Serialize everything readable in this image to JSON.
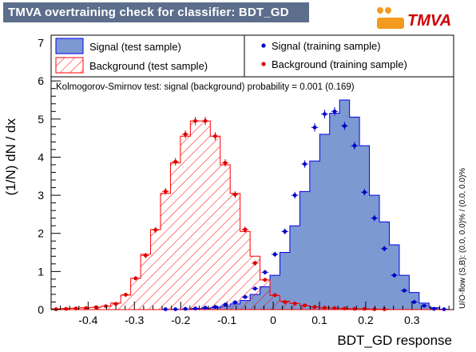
{
  "title": "TMVA overtraining check for classifier: BDT_GD",
  "logo_text": "TMVA",
  "colors": {
    "title_bg": "#5c6e8c",
    "signal_fill": "#7d99d1",
    "signal_line": "#0000ee",
    "signal_points": "#0000cc",
    "background_line": "#ff0000",
    "background_points": "#dd0000",
    "logo_orange": "#f39b1f",
    "logo_red": "#cc0000"
  },
  "legend": {
    "signal_test": "Signal (test sample)",
    "signal_train": "Signal (training sample)",
    "background_test": "Background (test sample)",
    "background_train": "Background (training sample)"
  },
  "ks_text": "Kolmogorov-Smirnov test: signal (background) probability = 0.001 (0.169)",
  "overflow_text": "U/O-flow (S,B): (0.0, 0.0)% / (0.0, 0.0)%",
  "chart_data": {
    "type": "histogram",
    "xlabel": "BDT_GD response",
    "ylabel": "(1/N) dN / dx",
    "xlim": [
      -0.48,
      0.39
    ],
    "ylim": [
      0,
      7.2
    ],
    "xticks": [
      -0.4,
      -0.3,
      -0.2,
      -0.1,
      0,
      0.1,
      0.2,
      0.3
    ],
    "xtick_labels": [
      "-0.4",
      "-0.3",
      "-0.2",
      "-0.1",
      "0",
      "0.1",
      "0.2",
      "0.3"
    ],
    "yticks": [
      0,
      1,
      2,
      3,
      4,
      5,
      6,
      7
    ],
    "ytick_labels": [
      "0",
      "1",
      "2",
      "3",
      "4",
      "5",
      "6",
      "7"
    ],
    "bin_edges": [
      -0.48,
      -0.4585,
      -0.437,
      -0.4155,
      -0.394,
      -0.3725,
      -0.351,
      -0.3295,
      -0.308,
      -0.2865,
      -0.265,
      -0.2435,
      -0.222,
      -0.2005,
      -0.179,
      -0.1575,
      -0.136,
      -0.1145,
      -0.093,
      -0.0715,
      -0.05,
      -0.0285,
      -0.007,
      0.0145,
      0.036,
      0.0575,
      0.079,
      0.1005,
      0.122,
      0.1435,
      0.165,
      0.1865,
      0.208,
      0.2295,
      0.251,
      0.2725,
      0.294,
      0.3155,
      0.337,
      0.3585,
      0.38
    ],
    "series": [
      {
        "name": "Signal (test sample)",
        "kind": "filled-histogram",
        "values": [
          0,
          0,
          0,
          0,
          0,
          0,
          0,
          0,
          0,
          0,
          0,
          0,
          0,
          0,
          0.02,
          0.03,
          0.05,
          0.09,
          0.15,
          0.24,
          0.4,
          0.6,
          0.9,
          1.5,
          2.2,
          3.1,
          3.9,
          4.6,
          5.15,
          5.5,
          5.05,
          4.3,
          3.0,
          2.3,
          1.7,
          0.9,
          0.45,
          0.17,
          0.05,
          0.01
        ]
      },
      {
        "name": "Signal (training sample)",
        "kind": "points",
        "values": [
          0,
          0,
          0,
          0,
          0,
          0,
          0,
          0,
          0,
          0,
          0,
          0.01,
          0.01,
          0.02,
          0.03,
          0.05,
          0.07,
          0.13,
          0.19,
          0.33,
          0.55,
          0.98,
          1.45,
          2.05,
          3.0,
          3.82,
          4.78,
          5.13,
          5.2,
          4.82,
          4.3,
          3.08,
          2.4,
          1.6,
          0.9,
          0.5,
          0.2,
          0.1,
          0.02,
          0.01
        ]
      },
      {
        "name": "Background (test sample)",
        "kind": "hatched-histogram",
        "values": [
          0.02,
          0.03,
          0.04,
          0.05,
          0.06,
          0.09,
          0.17,
          0.38,
          0.82,
          1.45,
          2.1,
          3.05,
          3.85,
          4.55,
          4.95,
          4.95,
          4.55,
          3.8,
          3.05,
          2.05,
          1.4,
          0.78,
          0.37,
          0.22,
          0.16,
          0.1,
          0.07,
          0.05,
          0.04,
          0.03,
          0.02,
          0.02,
          0.01,
          0.01,
          0,
          0,
          0,
          0,
          0,
          0
        ]
      },
      {
        "name": "Background (training sample)",
        "kind": "points",
        "values": [
          0.01,
          0.02,
          0.03,
          0.04,
          0.06,
          0.09,
          0.15,
          0.39,
          0.82,
          1.42,
          2.09,
          3.1,
          3.88,
          4.6,
          4.95,
          4.95,
          4.55,
          3.85,
          3.02,
          2.1,
          1.22,
          0.78,
          0.38,
          0.2,
          0.16,
          0.11,
          0.07,
          0.05,
          0.04,
          0.03,
          0.02,
          0.02,
          0.01,
          0.01,
          0,
          0,
          0,
          0,
          0,
          0
        ]
      }
    ]
  }
}
